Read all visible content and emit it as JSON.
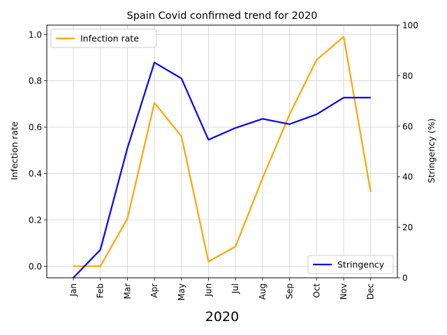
{
  "chart_data": {
    "type": "line",
    "title": "Spain Covid confirmed trend for 2020",
    "xlabel": "2020",
    "ylabel_left": "Infection rate",
    "ylabel_right": "Stringency (%)",
    "categories": [
      "Jan",
      "Feb",
      "Mar",
      "Apr",
      "May",
      "Jun",
      "Jul",
      "Aug",
      "Sep",
      "Oct",
      "Nov",
      "Dec"
    ],
    "ylim_left": [
      -0.05,
      1.04
    ],
    "ylim_right": [
      0,
      100
    ],
    "yticks_left": [
      "0.0",
      "0.2",
      "0.4",
      "0.6",
      "0.8",
      "1.0"
    ],
    "yticks_right": [
      "0",
      "20",
      "40",
      "60",
      "80",
      "100"
    ],
    "grid": true,
    "series": [
      {
        "name": "Infection rate",
        "axis": "left",
        "color": "#FFA500",
        "legend_position": "upper-left",
        "values": [
          0.0,
          0.0,
          0.205,
          0.705,
          0.56,
          0.02,
          0.085,
          0.38,
          0.655,
          0.89,
          0.99,
          0.32
        ]
      },
      {
        "name": "Stringency",
        "axis": "right",
        "color": "#0000FF",
        "legend_position": "lower-right",
        "values": [
          0,
          11.1,
          51.3,
          85.2,
          78.9,
          54.6,
          59.3,
          62.9,
          60.8,
          64.7,
          71.3,
          71.3
        ]
      }
    ]
  }
}
